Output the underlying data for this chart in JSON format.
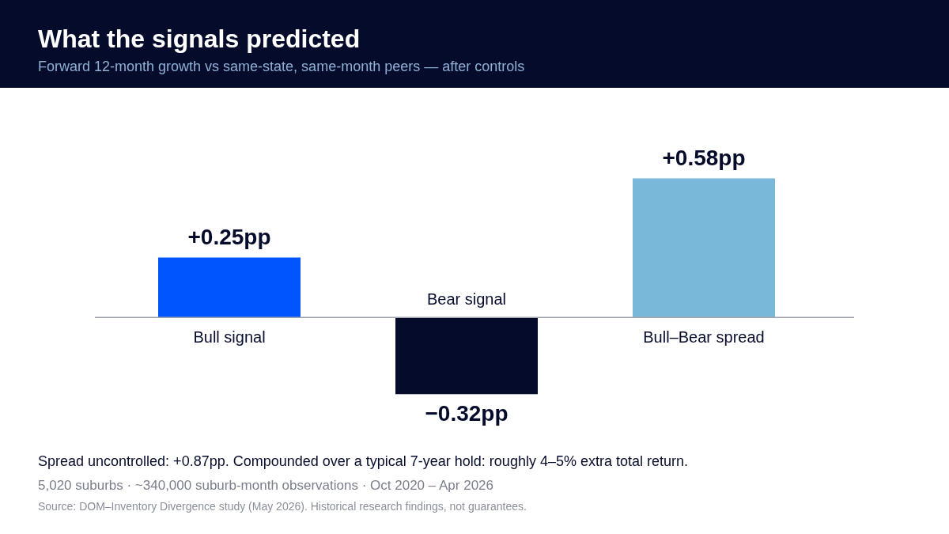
{
  "chart_data": {
    "type": "bar",
    "title": "What the signals predicted",
    "subtitle": "Forward 12-month growth vs same-state, same-month peers — after controls",
    "categories": [
      "Bull signal",
      "Bear signal",
      "Bull–Bear spread"
    ],
    "values": [
      0.25,
      -0.32,
      0.58
    ],
    "colors": [
      "#0055ff",
      "#050b2a",
      "#7ab8d9"
    ],
    "value_labels": [
      "+0.25pp",
      "−0.32pp",
      "+0.58pp"
    ],
    "legend": false,
    "annotations": [
      "Spread uncontrolled: +0.87pp. Compounded over a typical 7-year hold: roughly 4–5% extra total return.",
      "5,020 suburbs · ~340,000 suburb-month observations · Oct 2020 – Apr 2026",
      "Source: DOM–Inventory Divergence study (May 2026). Historical research findings, not guarantees."
    ]
  }
}
